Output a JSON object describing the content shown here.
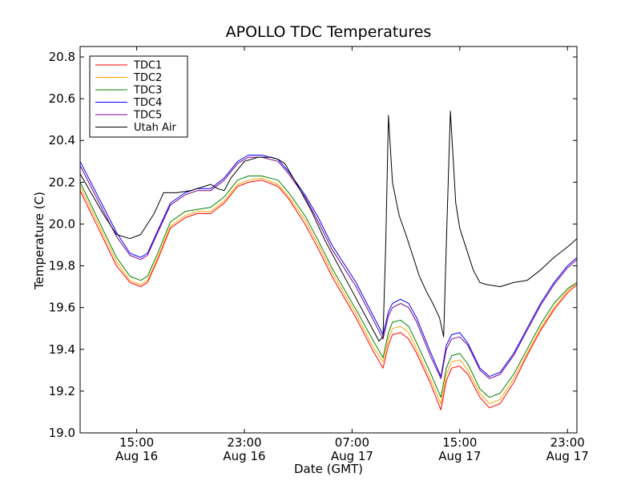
{
  "chart_data": {
    "type": "line",
    "title": "APOLLO TDC Temperatures",
    "xlabel": "Date (GMT)",
    "ylabel": "Temperature (C)",
    "xlim": [
      10.8,
      47.7
    ],
    "ylim": [
      19.0,
      20.85
    ],
    "x_unit": "hours since Aug 16 00:00 GMT",
    "x_ticks": [
      {
        "x": 15,
        "line1": "15:00",
        "line2": "Aug 16"
      },
      {
        "x": 23,
        "line1": "23:00",
        "line2": "Aug 16"
      },
      {
        "x": 31,
        "line1": "07:00",
        "line2": "Aug 17"
      },
      {
        "x": 39,
        "line1": "15:00",
        "line2": "Aug 17"
      },
      {
        "x": 47,
        "line1": "23:00",
        "line2": "Aug 17"
      }
    ],
    "y_ticks": [
      "19.0",
      "19.2",
      "19.4",
      "19.6",
      "19.8",
      "20.0",
      "20.2",
      "20.4",
      "20.6",
      "20.8"
    ],
    "legend_position": "top-left",
    "grid": false,
    "series": [
      {
        "name": "TDC1",
        "color": "#ff0000",
        "x": [
          10.8,
          13.5,
          14.5,
          15.3,
          15.8,
          16.5,
          17.5,
          18.6,
          19.5,
          20.5,
          21.5,
          22.5,
          23.3,
          24.3,
          25.5,
          26.3,
          27.5,
          28.5,
          29.5,
          31.3,
          32.5,
          33.3,
          33.7,
          34.0,
          34.6,
          35.2,
          35.8,
          36.8,
          37.6,
          38.0,
          38.4,
          39.0,
          39.6,
          40.5,
          41.2,
          42.0,
          43.0,
          44.0,
          45.0,
          46.0,
          47.0,
          47.7
        ],
        "y": [
          20.16,
          19.8,
          19.72,
          19.7,
          19.72,
          19.82,
          19.98,
          20.03,
          20.05,
          20.05,
          20.1,
          20.18,
          20.2,
          20.21,
          20.18,
          20.12,
          20.0,
          19.88,
          19.75,
          19.55,
          19.4,
          19.31,
          19.42,
          19.47,
          19.48,
          19.45,
          19.38,
          19.24,
          19.11,
          19.25,
          19.31,
          19.32,
          19.28,
          19.17,
          19.12,
          19.14,
          19.24,
          19.37,
          19.49,
          19.59,
          19.67,
          19.71
        ]
      },
      {
        "name": "TDC2",
        "color": "#ffa500",
        "x": [
          10.8,
          13.5,
          14.5,
          15.3,
          15.8,
          16.5,
          17.5,
          18.6,
          19.5,
          20.5,
          21.5,
          22.5,
          23.3,
          24.3,
          25.5,
          26.3,
          27.5,
          28.5,
          29.5,
          31.3,
          32.5,
          33.3,
          33.7,
          34.0,
          34.6,
          35.2,
          35.8,
          36.8,
          37.6,
          38.0,
          38.4,
          39.0,
          39.6,
          40.5,
          41.2,
          42.0,
          43.0,
          44.0,
          45.0,
          46.0,
          47.0,
          47.7
        ],
        "y": [
          20.18,
          19.82,
          19.73,
          19.71,
          19.73,
          19.83,
          19.99,
          20.04,
          20.06,
          20.06,
          20.11,
          20.19,
          20.21,
          20.22,
          20.19,
          20.13,
          20.02,
          19.9,
          19.77,
          19.57,
          19.42,
          19.34,
          19.45,
          19.5,
          19.51,
          19.48,
          19.4,
          19.26,
          19.14,
          19.28,
          19.34,
          19.35,
          19.3,
          19.19,
          19.14,
          19.16,
          19.26,
          19.38,
          19.5,
          19.6,
          19.68,
          19.72
        ]
      },
      {
        "name": "TDC3",
        "color": "#008000",
        "x": [
          10.8,
          13.5,
          14.5,
          15.3,
          15.8,
          16.5,
          17.5,
          18.6,
          19.5,
          20.5,
          21.5,
          22.5,
          23.3,
          24.3,
          25.5,
          26.3,
          27.5,
          28.5,
          29.5,
          31.3,
          32.5,
          33.3,
          33.7,
          34.0,
          34.6,
          35.2,
          35.8,
          36.8,
          37.6,
          38.0,
          38.4,
          39.0,
          39.6,
          40.5,
          41.2,
          42.0,
          43.0,
          44.0,
          45.0,
          46.0,
          47.0,
          47.7
        ],
        "y": [
          20.2,
          19.84,
          19.75,
          19.73,
          19.75,
          19.85,
          20.01,
          20.06,
          20.07,
          20.08,
          20.13,
          20.21,
          20.23,
          20.23,
          20.21,
          20.15,
          20.04,
          19.92,
          19.79,
          19.59,
          19.45,
          19.36,
          19.48,
          19.53,
          19.54,
          19.51,
          19.43,
          19.29,
          19.17,
          19.31,
          19.37,
          19.38,
          19.33,
          19.21,
          19.17,
          19.19,
          19.28,
          19.4,
          19.52,
          19.62,
          19.69,
          19.72
        ]
      },
      {
        "name": "TDC4",
        "color": "#0000ff",
        "x": [
          10.8,
          13.5,
          14.5,
          15.3,
          15.8,
          16.5,
          17.5,
          18.6,
          19.5,
          20.5,
          21.5,
          22.5,
          23.3,
          24.3,
          25.5,
          26.3,
          27.5,
          28.5,
          29.5,
          31.3,
          32.5,
          33.3,
          33.7,
          34.0,
          34.6,
          35.2,
          35.8,
          36.8,
          37.6,
          38.0,
          38.4,
          39.0,
          39.6,
          40.5,
          41.2,
          42.0,
          43.0,
          44.0,
          45.0,
          46.0,
          47.0,
          47.7
        ],
        "y": [
          20.3,
          19.96,
          19.86,
          19.84,
          19.86,
          19.96,
          20.1,
          20.15,
          20.17,
          20.17,
          20.22,
          20.3,
          20.33,
          20.33,
          20.31,
          20.25,
          20.14,
          20.03,
          19.9,
          19.72,
          19.57,
          19.47,
          19.58,
          19.62,
          19.64,
          19.62,
          19.55,
          19.39,
          19.27,
          19.42,
          19.47,
          19.48,
          19.43,
          19.31,
          19.27,
          19.29,
          19.38,
          19.5,
          19.62,
          19.72,
          19.8,
          19.84
        ]
      },
      {
        "name": "TDC5",
        "color": "#800080",
        "x": [
          10.8,
          13.5,
          14.5,
          15.3,
          15.8,
          16.5,
          17.5,
          18.6,
          19.5,
          20.5,
          21.5,
          22.5,
          23.3,
          24.3,
          25.5,
          26.3,
          27.5,
          28.5,
          29.5,
          31.3,
          32.5,
          33.3,
          33.7,
          34.0,
          34.6,
          35.2,
          35.8,
          36.8,
          37.6,
          38.0,
          38.4,
          39.0,
          39.6,
          40.5,
          41.2,
          42.0,
          43.0,
          44.0,
          45.0,
          46.0,
          47.0,
          47.7
        ],
        "y": [
          20.28,
          19.94,
          19.85,
          19.83,
          19.85,
          19.95,
          20.09,
          20.14,
          20.16,
          20.16,
          20.21,
          20.29,
          20.32,
          20.32,
          20.3,
          20.24,
          20.13,
          20.01,
          19.88,
          19.7,
          19.55,
          19.45,
          19.56,
          19.6,
          19.62,
          19.6,
          19.53,
          19.37,
          19.26,
          19.4,
          19.45,
          19.46,
          19.42,
          19.3,
          19.26,
          19.28,
          19.37,
          19.49,
          19.61,
          19.71,
          19.79,
          19.83
        ]
      },
      {
        "name": "Utah Air",
        "color": "#000000",
        "x": [
          10.8,
          12.5,
          13.5,
          14.5,
          15.3,
          16.3,
          17.0,
          18.0,
          19.0,
          20.0,
          20.5,
          21.0,
          21.5,
          22.0,
          22.5,
          23.0,
          24.0,
          25.0,
          25.5,
          26.0,
          27.0,
          28.0,
          29.0,
          30.0,
          31.0,
          32.0,
          33.0,
          33.3,
          33.5,
          33.7,
          34.0,
          34.5,
          35.0,
          35.5,
          36.0,
          36.5,
          37.0,
          37.5,
          37.8,
          38.0,
          38.3,
          38.7,
          39.0,
          39.5,
          40.0,
          40.5,
          41.0,
          42.0,
          43.0,
          44.0,
          45.0,
          46.0,
          47.0,
          47.7
        ],
        "y": [
          20.24,
          20.05,
          19.95,
          19.93,
          19.95,
          20.05,
          20.15,
          20.15,
          20.16,
          20.18,
          20.19,
          20.17,
          20.16,
          20.22,
          20.26,
          20.3,
          20.32,
          20.32,
          20.31,
          20.29,
          20.18,
          20.06,
          19.92,
          19.8,
          19.68,
          19.56,
          19.44,
          19.46,
          19.9,
          20.52,
          20.2,
          20.04,
          19.95,
          19.85,
          19.75,
          19.68,
          19.62,
          19.55,
          19.46,
          19.9,
          20.54,
          20.1,
          19.98,
          19.88,
          19.78,
          19.72,
          19.71,
          19.7,
          19.72,
          19.73,
          19.78,
          19.84,
          19.89,
          19.93
        ]
      }
    ]
  }
}
